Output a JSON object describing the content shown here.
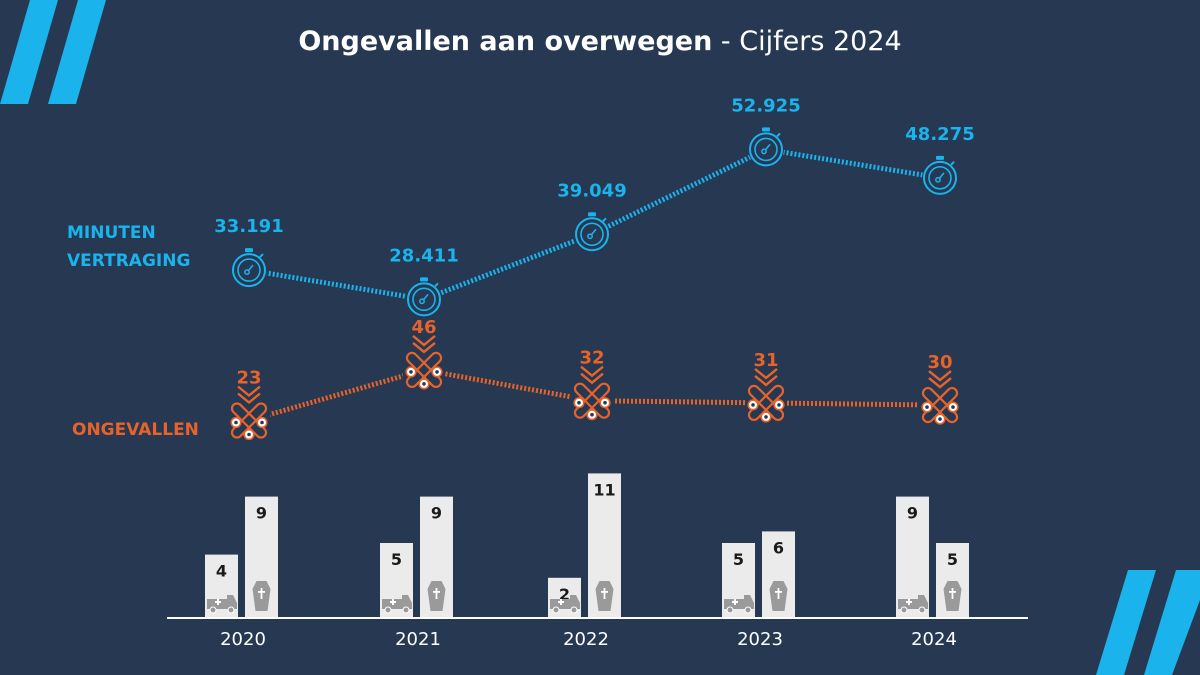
{
  "title": {
    "bold": "Ongevallen aan overwegen",
    "light": " - Cijfers 2024"
  },
  "colors": {
    "background": "#263852",
    "delay": "#1ab3ec",
    "accidents": "#e8632a",
    "bar_face": "#ebebeb",
    "text_dark": "#1a1a1a",
    "axis": "#ffffff"
  },
  "chart_data": {
    "type": "line",
    "categories": [
      "2020",
      "2021",
      "2022",
      "2023",
      "2024"
    ],
    "series": [
      {
        "key": "delay",
        "name_lines": [
          "MINUTEN",
          "VERTRAGING"
        ],
        "values": [
          33191,
          28411,
          39049,
          52925,
          48275
        ],
        "labels": [
          "33.191",
          "28.411",
          "39.049",
          "52.925",
          "48.275"
        ],
        "marker_icon": "stopwatch-icon"
      },
      {
        "key": "accidents",
        "name_lines": [
          "ONGEVALLEN"
        ],
        "values": [
          23,
          46,
          32,
          31,
          30
        ],
        "labels": [
          "23",
          "46",
          "32",
          "31",
          "30"
        ],
        "marker_icon": "level-crossing-icon"
      }
    ],
    "bars": {
      "type": "bar",
      "series": [
        {
          "icon": "ambulance-icon",
          "values": [
            4,
            5,
            2,
            5,
            9
          ]
        },
        {
          "icon": "coffin-icon",
          "values": [
            9,
            9,
            11,
            6,
            5
          ]
        }
      ]
    }
  }
}
